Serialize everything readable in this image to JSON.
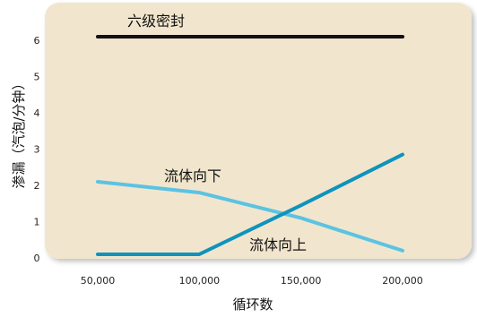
{
  "chart_data": {
    "type": "line",
    "title": "",
    "xlabel": "循环数",
    "ylabel": "渗漏（汽泡/分钟）",
    "categories": [
      "50,000",
      "100,000",
      "150,000",
      "200,000"
    ],
    "x": [
      50000,
      100000,
      150000,
      200000
    ],
    "ylim": [
      0,
      6
    ],
    "yticks": [
      "0",
      "1",
      "2",
      "3",
      "4",
      "5",
      "6"
    ],
    "grid": false,
    "background": "#f1e6cd",
    "series": [
      {
        "name": "六级密封",
        "color": "#111111",
        "width": 4,
        "points": [
          [
            50000,
            6.1
          ],
          [
            100000,
            6.1
          ],
          [
            150000,
            6.1
          ],
          [
            200000,
            6.1
          ]
        ]
      },
      {
        "name": "流体向下",
        "color": "#5bc3e3",
        "width": 4,
        "points": [
          [
            50000,
            2.1
          ],
          [
            100000,
            1.8
          ],
          [
            150000,
            1.1
          ],
          [
            200000,
            0.2
          ]
        ]
      },
      {
        "name": "流体向上",
        "color": "#0f93bd",
        "width": 4,
        "points": [
          [
            50000,
            0.1
          ],
          [
            100000,
            0.1
          ],
          [
            150000,
            1.45
          ],
          [
            200000,
            2.85
          ]
        ]
      }
    ]
  }
}
